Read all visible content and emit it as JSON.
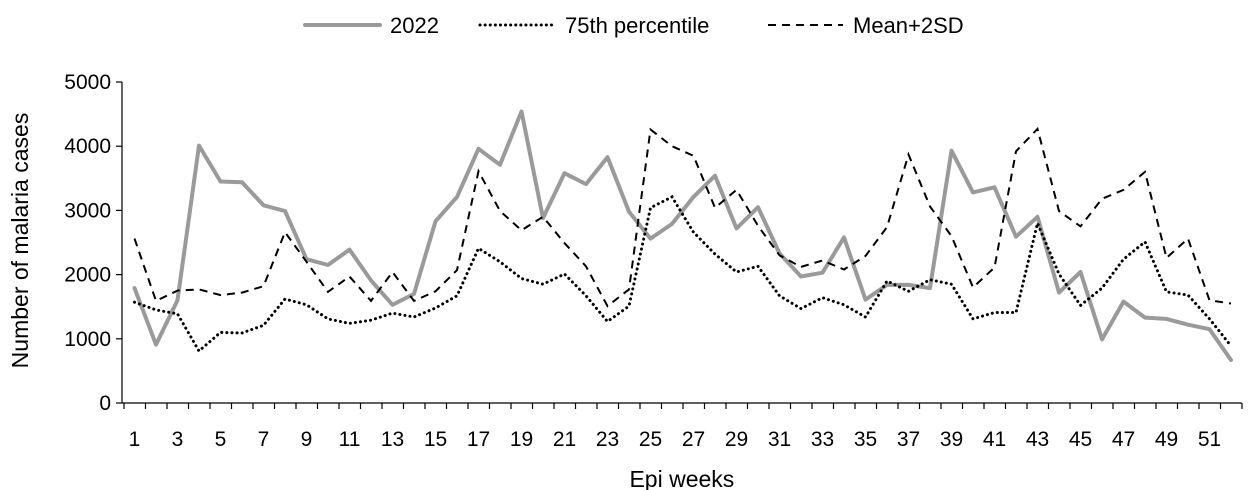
{
  "chart_data": {
    "type": "line",
    "title": "",
    "xlabel": "Epi weeks",
    "ylabel": "Number of malaria cases",
    "ylim": [
      0,
      5000
    ],
    "yticks": [
      0,
      1000,
      2000,
      3000,
      4000,
      5000
    ],
    "xticks": [
      1,
      3,
      5,
      7,
      9,
      11,
      13,
      15,
      17,
      19,
      21,
      23,
      25,
      27,
      29,
      31,
      33,
      35,
      37,
      39,
      41,
      43,
      45,
      47,
      49,
      51
    ],
    "legend": "top",
    "grid": false,
    "x": [
      1,
      2,
      3,
      4,
      5,
      6,
      7,
      8,
      9,
      10,
      11,
      12,
      13,
      14,
      15,
      16,
      17,
      18,
      19,
      20,
      21,
      22,
      23,
      24,
      25,
      26,
      27,
      28,
      29,
      30,
      31,
      32,
      33,
      34,
      35,
      36,
      37,
      38,
      39,
      40,
      41,
      42,
      43,
      44,
      45,
      46,
      47,
      48,
      49,
      50,
      51,
      52
    ],
    "series": [
      {
        "name": "2022",
        "color": "#9a9a9a",
        "style": "solid",
        "values": [
          1790,
          910,
          1600,
          4010,
          3450,
          3440,
          3080,
          2990,
          2240,
          2150,
          2390,
          1910,
          1530,
          1700,
          2830,
          3210,
          3960,
          3710,
          4540,
          2880,
          3580,
          3410,
          3830,
          2980,
          2560,
          2790,
          3210,
          3540,
          2720,
          3050,
          2330,
          1970,
          2030,
          2580,
          1610,
          1840,
          1840,
          1790,
          3930,
          3280,
          3360,
          2590,
          2900,
          1720,
          2040,
          990,
          1580,
          1330,
          1310,
          1220,
          1150,
          670
        ]
      },
      {
        "name": "75th percentile",
        "color": "#000000",
        "style": "dotted",
        "values": [
          1570,
          1450,
          1390,
          810,
          1100,
          1090,
          1210,
          1620,
          1530,
          1310,
          1240,
          1290,
          1400,
          1340,
          1480,
          1670,
          2410,
          2200,
          1940,
          1850,
          2010,
          1670,
          1270,
          1510,
          3040,
          3210,
          2660,
          2320,
          2040,
          2130,
          1670,
          1470,
          1640,
          1530,
          1340,
          1900,
          1740,
          1920,
          1850,
          1310,
          1410,
          1410,
          2800,
          2010,
          1520,
          1790,
          2240,
          2510,
          1730,
          1680,
          1310,
          890
        ]
      },
      {
        "name": "Mean+2SD",
        "color": "#000000",
        "style": "dashed",
        "values": [
          2560,
          1590,
          1750,
          1770,
          1680,
          1720,
          1820,
          2660,
          2200,
          1730,
          1970,
          1590,
          2040,
          1590,
          1740,
          2070,
          3610,
          2990,
          2690,
          2900,
          2490,
          2130,
          1510,
          1770,
          4260,
          4000,
          3850,
          3040,
          3320,
          2760,
          2300,
          2120,
          2220,
          2080,
          2290,
          2740,
          3870,
          3060,
          2600,
          1800,
          2110,
          3920,
          4270,
          2990,
          2750,
          3180,
          3320,
          3600,
          2260,
          2560,
          1600,
          1550
        ]
      }
    ]
  }
}
